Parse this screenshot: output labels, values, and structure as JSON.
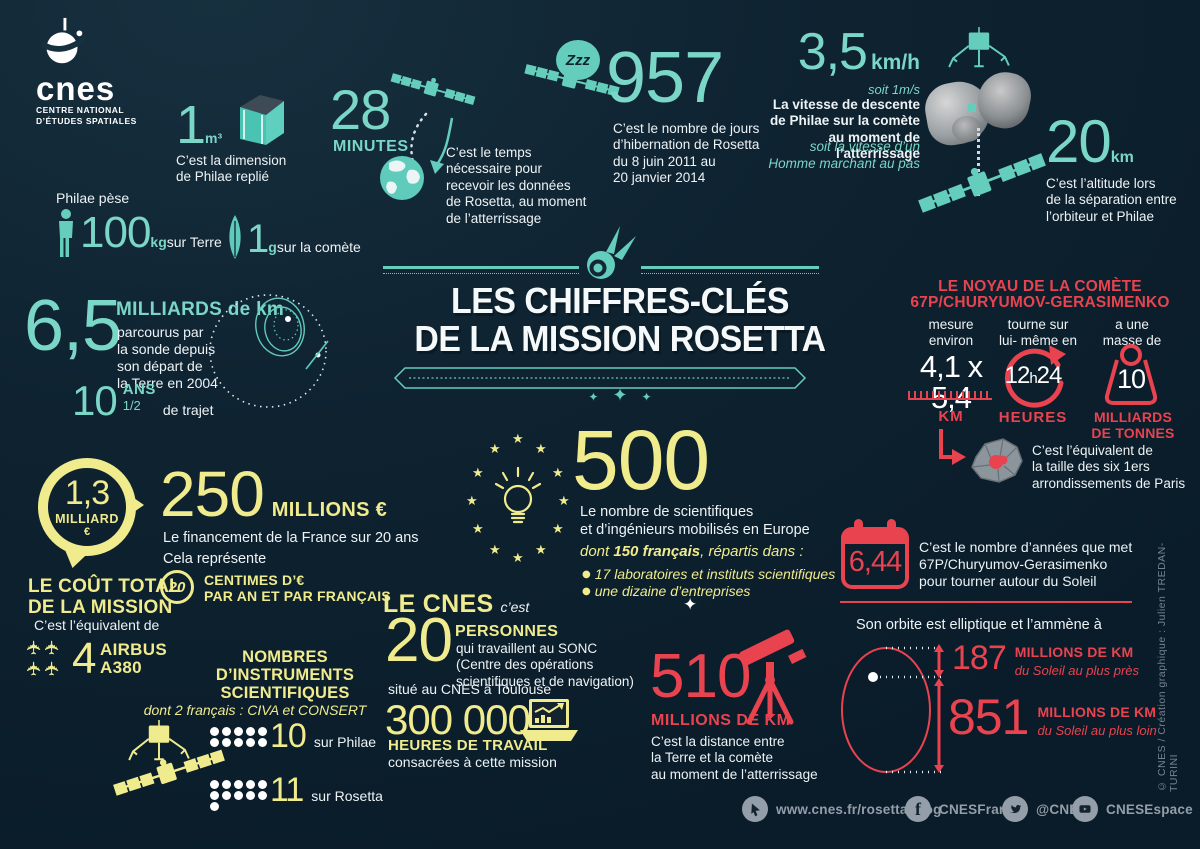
{
  "colors": {
    "background": "#0e2230",
    "teal": "#64cdbc",
    "yellow": "#f0eb8d",
    "red": "#e8434f",
    "white": "#eef3f5",
    "gray": "#949ea8"
  },
  "icons": {
    "star": "★",
    "plane": "✈",
    "diamond": "✦",
    "sparkle": "✦",
    "bullet": "●"
  },
  "logo": {
    "name": "cnes",
    "sub1": "CENTRE NATIONAL",
    "sub2": "D’ÉTUDES SPATIALES"
  },
  "title": {
    "line1": "LES CHIFFRES-CLÉS",
    "line2": "DE LA MISSION ROSETTA"
  },
  "dimension": {
    "value": "1",
    "unit": "m³",
    "caption": "C’est la dimension\nde Philae replié"
  },
  "weight": {
    "label": "Philae pèse",
    "earth_value": "100",
    "earth_unit": "kg",
    "earth_text": "sur Terre",
    "comet_value": "1",
    "comet_unit": "g",
    "comet_text": "sur la comète"
  },
  "minutes": {
    "value": "28",
    "unit": "MINUTES",
    "caption": "C’est le temps\nnécessaire pour\nrecevoir les données\nde Rosetta, au moment\nde l’atterrissage"
  },
  "hibernation": {
    "zzz": "Zzz",
    "value": "957",
    "caption": "C’est le nombre de jours\nd’hibernation de Rosetta\ndu 8 juin 2011 au\n20 janvier 2014"
  },
  "descent": {
    "value": "3,5",
    "unit": "km/h",
    "sub": "soit 1m/s",
    "caption": "La vitesse de descente\nde Philae sur la comète\nau moment de l’atterrissage",
    "note": "soit la vitesse d’un\nHomme marchant au pas"
  },
  "altitude": {
    "value": "20",
    "unit": "km",
    "caption": "C’est l’altitude lors\nde la séparation entre\nl’orbiteur et Philae"
  },
  "journey": {
    "value": "6,5",
    "unit": "MILLIARDS de km",
    "caption": "parcourus par\nla sonde depuis\nson départ de\nla Terre en 2004",
    "years_value": "10",
    "years_unit": "ANS",
    "years_frac": "1/2",
    "years_text": "de trajet"
  },
  "nucleus": {
    "heading": "LE NOYAU DE LA COMÈTE\n67P/CHURYUMOV-GERASIMENKO",
    "size_label": "mesure\nenviron",
    "size_value": "4,1 x 5,4",
    "size_unit": "KM",
    "spin_label": "tourne sur\nlui- même en",
    "spin_h": "h",
    "spin_v1": "12",
    "spin_v2": "24",
    "spin_unit": "HEURES",
    "mass_label": "a une\nmasse de",
    "mass_value": "10",
    "mass_unit": "MILLIARDS\nDE TONNES",
    "paris_caption": "C’est l’équivalent de\nla taille des six 1ers\narrondissements de Paris"
  },
  "cost": {
    "value": "1,3",
    "unit": "MILLIARD",
    "currency": "€",
    "label": "LE COÛT TOTAL\nDE LA MISSION",
    "equiv": "C’est l’équivalent de",
    "planes_value": "4",
    "planes_label": "AIRBUS\nA380"
  },
  "funding": {
    "value": "250",
    "unit": "MILLIONS €",
    "caption": "Le financement de la France sur 20 ans",
    "represents": "Cela représente",
    "coin_value": "20",
    "coin_text": "CENTIMES D’€\nPAR AN ET PAR FRANÇAIS"
  },
  "scientists": {
    "value": "500",
    "caption": "Le nombre de scientifiques\net d’ingénieurs mobilisés en Europe",
    "detail_pre": "dont ",
    "detail_bold": "150 français",
    "detail_post": ", répartis dans :",
    "bullet1": "17 laboratoires et instituts scientifiques",
    "bullet2": "une dizaine d’entreprises"
  },
  "cnes_block": {
    "heading": "LE CNES",
    "heading_note": "c’est",
    "people_value": "20",
    "people_unit": "PERSONNES",
    "people_caption": "qui travaillent au SONC\n(Centre des opérations\nscientifiques et de navigation)",
    "people_location": "situé au CNES à Toulouse",
    "hours_value": "300 000",
    "hours_unit": "HEURES DE TRAVAIL",
    "hours_caption": "consacrées à cette mission"
  },
  "instruments": {
    "heading": "NOMBRES\nD’INSTRUMENTS\nSCIENTIFIQUES",
    "subheading": "dont 2 français : CIVA et CONSERT",
    "philae_count": 10,
    "philae_value": "10",
    "philae_text": "sur Philae",
    "rosetta_count": 11,
    "rosetta_value": "11",
    "rosetta_text": "sur Rosetta"
  },
  "distance": {
    "value": "510",
    "unit": "MILLIONS DE KM",
    "caption": "C’est la distance entre\nla Terre et la comète\nau moment de l’atterrissage"
  },
  "solar_orbit": {
    "value": "6,44",
    "caption": "C’est le nombre d’années que met\n67P/Churyumov-Gerasimenko\npour tourner autour du Soleil",
    "intro": "Son orbite est elliptique et l’ammène à",
    "near_value": "187",
    "near_unit": "MILLIONS DE KM",
    "near_text": "du Soleil au plus près",
    "far_value": "851",
    "far_unit": "MILLIONS DE KM",
    "far_text": "du Soleil au plus loin"
  },
  "footer": {
    "blog": "www.cnes.fr/rosetta-blog",
    "facebook": "CNESFrance",
    "twitter": "@CNES",
    "youtube": "CNESEspace"
  },
  "credit": "© CNES / Création graphique : Julien TREDAN-TURINI"
}
